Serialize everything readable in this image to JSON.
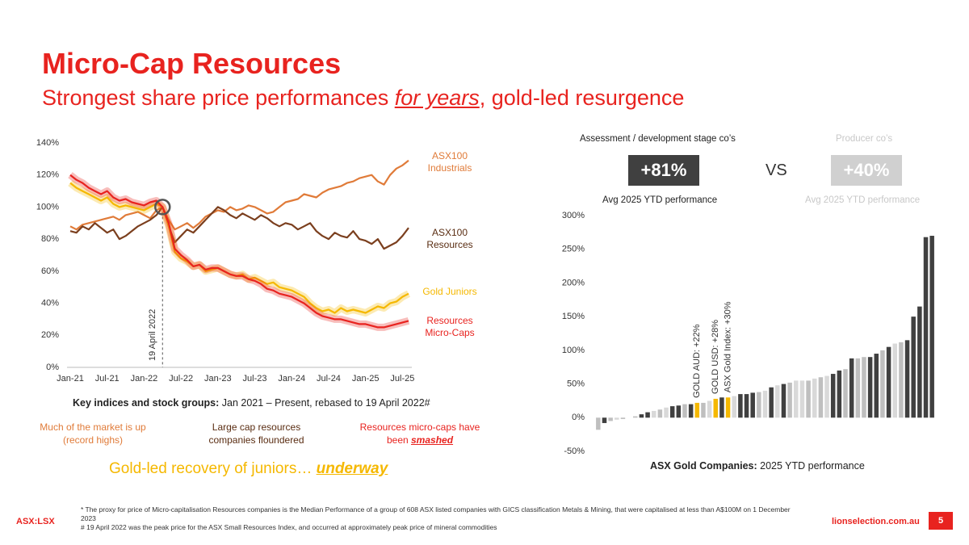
{
  "title": "Micro-Cap Resources",
  "subtitle": {
    "before": "Strongest share price performances ",
    "emphasis": "for years",
    "after": ", gold-led resurgence"
  },
  "chart_data": [
    {
      "type": "line",
      "categories": [
        "Jan-21",
        null,
        null,
        null,
        null,
        null,
        "Jul-21",
        null,
        null,
        null,
        null,
        null,
        "Jan-22",
        null,
        null,
        null,
        null,
        null,
        "Jul-22",
        null,
        null,
        null,
        null,
        null,
        "Jan-23",
        null,
        null,
        null,
        null,
        null,
        "Jul-23",
        null,
        null,
        null,
        null,
        null,
        "Jan-24",
        null,
        null,
        null,
        null,
        null,
        "Jul-24",
        null,
        null,
        null,
        null,
        null,
        "Jan-25",
        null,
        null,
        null,
        null,
        null,
        "Jul-25",
        null
      ],
      "series": [
        {
          "name": "ASX100 Industrials",
          "color": "#e07b39",
          "values": [
            88,
            86,
            89,
            90,
            91,
            92,
            93,
            94,
            92,
            95,
            96,
            97,
            95,
            93,
            98,
            100,
            92,
            86,
            88,
            90,
            87,
            90,
            94,
            96,
            98,
            97,
            100,
            98,
            99,
            101,
            100,
            98,
            96,
            97,
            100,
            103,
            104,
            105,
            108,
            107,
            106,
            109,
            111,
            112,
            113,
            115,
            116,
            118,
            119,
            120,
            116,
            114,
            120,
            124,
            126,
            129
          ]
        },
        {
          "name": "ASX100 Resources",
          "color": "#7b3f1e",
          "values": [
            85,
            84,
            88,
            86,
            90,
            87,
            84,
            86,
            80,
            82,
            85,
            88,
            90,
            92,
            95,
            100,
            88,
            78,
            82,
            86,
            84,
            88,
            92,
            96,
            100,
            98,
            95,
            93,
            96,
            94,
            92,
            95,
            93,
            90,
            88,
            90,
            89,
            86,
            88,
            90,
            85,
            82,
            80,
            84,
            82,
            81,
            85,
            80,
            79,
            77,
            80,
            74,
            76,
            78,
            82,
            87
          ]
        },
        {
          "name": "Gold Juniors",
          "color": "#f5b800",
          "values": [
            115,
            112,
            110,
            108,
            106,
            104,
            106,
            102,
            100,
            101,
            100,
            99,
            98,
            100,
            102,
            100,
            88,
            72,
            68,
            66,
            63,
            64,
            60,
            61,
            62,
            60,
            58,
            57,
            58,
            55,
            56,
            54,
            52,
            53,
            50,
            49,
            48,
            46,
            44,
            40,
            37,
            35,
            36,
            34,
            37,
            35,
            36,
            35,
            34,
            36,
            38,
            37,
            40,
            41,
            44,
            46
          ]
        },
        {
          "name": "Resources Micro-Caps",
          "color": "#e8231f",
          "values": [
            120,
            117,
            115,
            112,
            110,
            108,
            110,
            106,
            104,
            105,
            103,
            102,
            101,
            103,
            104,
            100,
            90,
            74,
            70,
            67,
            63,
            64,
            61,
            62,
            62,
            60,
            58,
            57,
            57,
            55,
            54,
            52,
            49,
            48,
            46,
            45,
            44,
            42,
            40,
            37,
            34,
            32,
            31,
            30,
            30,
            29,
            28,
            27,
            27,
            26,
            25,
            25,
            26,
            27,
            28,
            29
          ]
        }
      ],
      "ylim": [
        0,
        140
      ],
      "yticks": [
        {
          "value": 0,
          "label": "0%"
        },
        {
          "value": 20,
          "label": "20%"
        },
        {
          "value": 40,
          "label": "40%"
        },
        {
          "value": 60,
          "label": "60%"
        },
        {
          "value": 80,
          "label": "80%"
        },
        {
          "value": 100,
          "label": "100%"
        },
        {
          "value": 120,
          "label": "120%"
        },
        {
          "value": 140,
          "label": "140%"
        }
      ],
      "grid": false,
      "annotation": "19 April 2022",
      "caption": {
        "bold": "Key indices and stock groups:",
        "rest": " Jan 2021 – Present, rebased to 19 April 2022#"
      }
    },
    {
      "type": "bar",
      "values": [
        -18,
        -8,
        -5,
        -3,
        -2,
        0,
        2,
        5,
        8,
        10,
        12,
        15,
        17,
        18,
        20,
        20,
        22,
        22,
        25,
        28,
        30,
        30,
        32,
        35,
        35,
        37,
        38,
        40,
        45,
        48,
        50,
        52,
        55,
        55,
        55,
        58,
        60,
        62,
        65,
        70,
        72,
        88,
        88,
        90,
        90,
        95,
        100,
        105,
        110,
        112,
        115,
        150,
        165,
        268,
        270
      ],
      "colors": [
        "#bfbfbf",
        "#404040",
        "#bfbfbf",
        "#d9d9d9",
        "#bfbfbf",
        "#404040",
        "#bfbfbf",
        "#404040",
        "#404040",
        "#d9d9d9",
        "#bfbfbf",
        "#d9d9d9",
        "#404040",
        "#404040",
        "#bfbfbf",
        "#404040",
        "#f5b800",
        "#bfbfbf",
        "#d9d9d9",
        "#f5b800",
        "#404040",
        "#f5b800",
        "#d9d9d9",
        "#404040",
        "#404040",
        "#404040",
        "#bfbfbf",
        "#d9d9d9",
        "#404040",
        "#d9d9d9",
        "#404040",
        "#bfbfbf",
        "#d9d9d9",
        "#d9d9d9",
        "#bfbfbf",
        "#d9d9d9",
        "#bfbfbf",
        "#d9d9d9",
        "#404040",
        "#404040",
        "#bfbfbf",
        "#404040",
        "#bfbfbf",
        "#bfbfbf",
        "#404040",
        "#404040",
        "#bfbfbf",
        "#404040",
        "#d9d9d9",
        "#bfbfbf",
        "#404040",
        "#404040",
        "#404040",
        "#404040",
        "#404040"
      ],
      "ylim": [
        -50,
        300
      ],
      "yticks": [
        {
          "value": -50,
          "label": "-50%"
        },
        {
          "value": 0,
          "label": "0%"
        },
        {
          "value": 50,
          "label": "50%"
        },
        {
          "value": 100,
          "label": "100%"
        },
        {
          "value": 150,
          "label": "150%"
        },
        {
          "value": 200,
          "label": "200%"
        },
        {
          "value": 250,
          "label": "250%"
        },
        {
          "value": 300,
          "label": "300%"
        }
      ],
      "grid": false,
      "annotations": [
        "GOLD AUD: +22%",
        "GOLD USD: +28%",
        "ASX Gold Index: +30%"
      ],
      "caption": {
        "bold": "ASX Gold Companies:",
        "rest": " 2025 YTD performance"
      }
    }
  ],
  "comparison": {
    "left": {
      "heading": "Assessment / development stage co’s",
      "value": "+81%",
      "caption": "Avg 2025 YTD performance"
    },
    "vs": "VS",
    "right": {
      "heading": "Producer co’s",
      "value": "+40%",
      "caption": "Avg 2025 YTD performance"
    }
  },
  "notes": [
    "Much of the market is up (record highs)",
    "Large cap resources companies floundered",
    {
      "before": "Resources micro-caps have been ",
      "emphasis": "smashed"
    }
  ],
  "callout": {
    "before": "Gold-led recovery of juniors… ",
    "emphasis": "underway"
  },
  "footnotes": [
    "* The proxy for price of Micro-capitalisation Resources companies is the Median Performance of a group of 608 ASX listed companies with GICS classification Metals & Mining, that were capitalised at less than A$100M on 1 December 2023",
    "# 19 April 2022 was the peak price for the ASX Small Resources Index, and occurred at approximately peak price of mineral commodities"
  ],
  "footer": {
    "ticker": "ASX:LSX",
    "website": "lionselection.com.au",
    "page": "5"
  }
}
